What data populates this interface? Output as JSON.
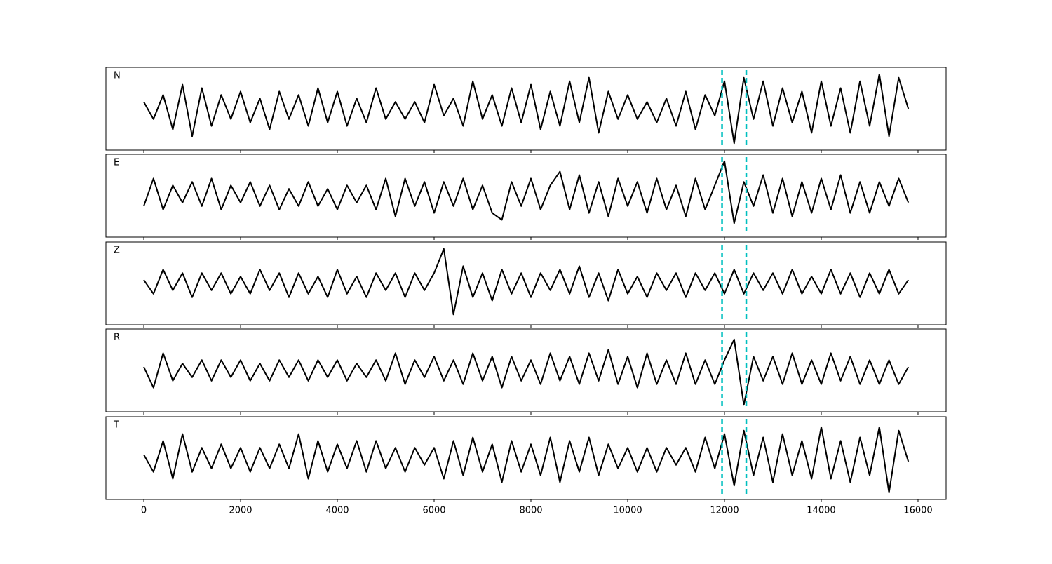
{
  "chart_data": {
    "type": "line",
    "x": [
      0,
      200,
      400,
      600,
      800,
      1000,
      1200,
      1400,
      1600,
      1800,
      2000,
      2200,
      2400,
      2600,
      2800,
      3000,
      3200,
      3400,
      3600,
      3800,
      4000,
      4200,
      4400,
      4600,
      4800,
      5000,
      5200,
      5400,
      5600,
      5800,
      6000,
      6200,
      6400,
      6600,
      6800,
      7000,
      7200,
      7400,
      7600,
      7800,
      8000,
      8200,
      8400,
      8600,
      8800,
      9000,
      9200,
      9400,
      9600,
      9800,
      10000,
      10200,
      10400,
      10600,
      10800,
      11000,
      11200,
      11400,
      11600,
      11800,
      12000,
      12200,
      12400,
      12600,
      12800,
      13000,
      13200,
      13400,
      13600,
      13800,
      14000,
      14200,
      14400,
      14600,
      14800,
      15000,
      15200,
      15400,
      15600,
      15800
    ],
    "series": [
      {
        "name": "N",
        "color": "#000000",
        "values": [
          0.2,
          -0.3,
          0.4,
          -0.6,
          0.7,
          -0.8,
          0.6,
          -0.5,
          0.4,
          -0.3,
          0.5,
          -0.4,
          0.3,
          -0.6,
          0.5,
          -0.3,
          0.4,
          -0.5,
          0.6,
          -0.4,
          0.5,
          -0.5,
          0.3,
          -0.4,
          0.6,
          -0.3,
          0.2,
          -0.3,
          0.2,
          -0.4,
          0.7,
          -0.2,
          0.3,
          -0.5,
          0.8,
          -0.3,
          0.4,
          -0.5,
          0.6,
          -0.4,
          0.7,
          -0.6,
          0.5,
          -0.5,
          0.8,
          -0.4,
          0.9,
          -0.7,
          0.5,
          -0.3,
          0.4,
          -0.3,
          0.2,
          -0.4,
          0.3,
          -0.5,
          0.5,
          -0.6,
          0.4,
          -0.2,
          0.8,
          -1.0,
          0.9,
          -0.3,
          0.8,
          -0.5,
          0.6,
          -0.4,
          0.5,
          -0.7,
          0.8,
          -0.5,
          0.6,
          -0.7,
          0.8,
          -0.5,
          1.0,
          -0.8,
          0.9,
          0.0
        ]
      },
      {
        "name": "E",
        "color": "#000000",
        "values": [
          -0.3,
          0.5,
          -0.4,
          0.3,
          -0.2,
          0.4,
          -0.3,
          0.5,
          -0.4,
          0.3,
          -0.2,
          0.4,
          -0.3,
          0.3,
          -0.4,
          0.2,
          -0.3,
          0.4,
          -0.3,
          0.2,
          -0.4,
          0.3,
          -0.2,
          0.3,
          -0.4,
          0.5,
          -0.6,
          0.5,
          -0.3,
          0.4,
          -0.5,
          0.4,
          -0.3,
          0.5,
          -0.4,
          0.3,
          -0.5,
          -0.7,
          0.4,
          -0.3,
          0.5,
          -0.4,
          0.3,
          0.7,
          -0.4,
          0.6,
          -0.5,
          0.4,
          -0.6,
          0.5,
          -0.3,
          0.4,
          -0.5,
          0.5,
          -0.4,
          0.3,
          -0.6,
          0.5,
          -0.4,
          0.3,
          1.0,
          -0.8,
          0.4,
          -0.3,
          0.6,
          -0.5,
          0.5,
          -0.6,
          0.4,
          -0.5,
          0.5,
          -0.4,
          0.6,
          -0.5,
          0.4,
          -0.5,
          0.4,
          -0.3,
          0.5,
          -0.2
        ]
      },
      {
        "name": "Z",
        "color": "#000000",
        "values": [
          0.1,
          -0.3,
          0.4,
          -0.2,
          0.3,
          -0.4,
          0.3,
          -0.2,
          0.3,
          -0.3,
          0.2,
          -0.3,
          0.4,
          -0.2,
          0.3,
          -0.4,
          0.3,
          -0.3,
          0.2,
          -0.4,
          0.4,
          -0.3,
          0.2,
          -0.4,
          0.3,
          -0.2,
          0.3,
          -0.4,
          0.3,
          -0.2,
          0.3,
          1.0,
          -0.9,
          0.5,
          -0.4,
          0.3,
          -0.5,
          0.4,
          -0.3,
          0.3,
          -0.4,
          0.3,
          -0.2,
          0.4,
          -0.3,
          0.5,
          -0.4,
          0.3,
          -0.5,
          0.4,
          -0.3,
          0.2,
          -0.4,
          0.3,
          -0.2,
          0.3,
          -0.4,
          0.3,
          -0.2,
          0.3,
          -0.3,
          0.4,
          -0.3,
          0.3,
          -0.2,
          0.3,
          -0.3,
          0.4,
          -0.3,
          0.2,
          -0.3,
          0.4,
          -0.3,
          0.3,
          -0.4,
          0.3,
          -0.3,
          0.4,
          -0.3,
          0.1
        ]
      },
      {
        "name": "R",
        "color": "#000000",
        "values": [
          0.1,
          -0.5,
          0.5,
          -0.3,
          0.2,
          -0.2,
          0.3,
          -0.3,
          0.3,
          -0.2,
          0.3,
          -0.3,
          0.2,
          -0.3,
          0.3,
          -0.2,
          0.3,
          -0.3,
          0.3,
          -0.2,
          0.3,
          -0.3,
          0.2,
          -0.2,
          0.3,
          -0.3,
          0.5,
          -0.4,
          0.3,
          -0.2,
          0.4,
          -0.3,
          0.3,
          -0.4,
          0.5,
          -0.3,
          0.4,
          -0.5,
          0.4,
          -0.3,
          0.3,
          -0.4,
          0.5,
          -0.3,
          0.4,
          -0.4,
          0.5,
          -0.3,
          0.6,
          -0.4,
          0.4,
          -0.5,
          0.5,
          -0.4,
          0.3,
          -0.4,
          0.5,
          -0.4,
          0.3,
          -0.4,
          0.3,
          0.9,
          -1.0,
          0.4,
          -0.3,
          0.4,
          -0.4,
          0.5,
          -0.4,
          0.3,
          -0.4,
          0.5,
          -0.3,
          0.4,
          -0.4,
          0.3,
          -0.4,
          0.3,
          -0.4,
          0.1
        ]
      },
      {
        "name": "T",
        "color": "#000000",
        "values": [
          0.1,
          -0.4,
          0.5,
          -0.6,
          0.7,
          -0.4,
          0.3,
          -0.3,
          0.4,
          -0.3,
          0.3,
          -0.4,
          0.3,
          -0.3,
          0.4,
          -0.3,
          0.7,
          -0.6,
          0.5,
          -0.4,
          0.4,
          -0.3,
          0.5,
          -0.4,
          0.5,
          -0.3,
          0.3,
          -0.4,
          0.3,
          -0.2,
          0.3,
          -0.6,
          0.5,
          -0.5,
          0.6,
          -0.4,
          0.4,
          -0.7,
          0.5,
          -0.4,
          0.4,
          -0.5,
          0.6,
          -0.7,
          0.5,
          -0.4,
          0.6,
          -0.5,
          0.4,
          -0.3,
          0.3,
          -0.4,
          0.3,
          -0.4,
          0.3,
          -0.2,
          0.3,
          -0.4,
          0.6,
          -0.3,
          0.7,
          -0.8,
          0.8,
          -0.5,
          0.6,
          -0.7,
          0.7,
          -0.5,
          0.5,
          -0.6,
          0.9,
          -0.6,
          0.5,
          -0.7,
          0.6,
          -0.5,
          0.9,
          -1.0,
          0.8,
          -0.1
        ]
      }
    ],
    "xlim": [
      -783,
      16580
    ],
    "xticks": [
      0,
      2000,
      4000,
      6000,
      8000,
      10000,
      12000,
      14000,
      16000
    ],
    "ylim": [
      -1.2,
      1.2
    ],
    "vlines": [
      11950,
      12450
    ],
    "vline_color": "#00bfbf"
  }
}
